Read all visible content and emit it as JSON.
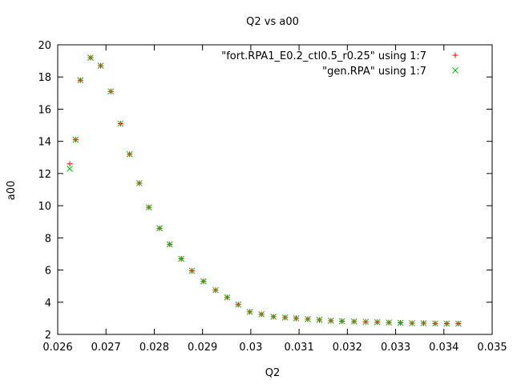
{
  "chart_data": {
    "type": "scatter",
    "title": "Q2 vs a00",
    "xlabel": "Q2",
    "ylabel": "a00",
    "xlim": [
      0.026,
      0.035
    ],
    "ylim": [
      2,
      20
    ],
    "xticks": [
      0.026,
      0.027,
      0.028,
      0.029,
      0.03,
      0.031,
      0.032,
      0.033,
      0.034,
      0.035
    ],
    "xtick_labels": [
      "0.026",
      "0.027",
      "0.028",
      "0.029",
      "0.03",
      "0.031",
      "0.032",
      "0.033",
      "0.034",
      "0.035"
    ],
    "yticks": [
      2,
      4,
      6,
      8,
      10,
      12,
      14,
      16,
      18,
      20
    ],
    "ytick_labels": [
      "2",
      "4",
      "6",
      "8",
      "10",
      "12",
      "14",
      "16",
      "18",
      "20"
    ],
    "grid": false,
    "legend_position": "top-right",
    "series": [
      {
        "name": "\"fort.RPA1_E0.2_ctl0.5_r0.25\" using 1:7",
        "marker": "plus",
        "color": "#ff0000",
        "x": [
          0.02625,
          0.02637,
          0.02647,
          0.02668,
          0.02689,
          0.0271,
          0.0273,
          0.02749,
          0.02769,
          0.02789,
          0.02811,
          0.02832,
          0.02856,
          0.02878,
          0.02902,
          0.02927,
          0.02951,
          0.02974,
          0.02998,
          0.03022,
          0.03047,
          0.03071,
          0.03094,
          0.03118,
          0.03142,
          0.03166,
          0.03189,
          0.03214,
          0.03238,
          0.03262,
          0.03286,
          0.0331,
          0.03334,
          0.03358,
          0.03382,
          0.03406,
          0.0343
        ],
        "y": [
          12.6,
          14.1,
          17.8,
          19.2,
          18.7,
          17.1,
          15.1,
          13.2,
          11.4,
          9.9,
          8.6,
          7.6,
          6.7,
          5.95,
          5.3,
          4.75,
          4.3,
          3.85,
          3.4,
          3.25,
          3.1,
          3.05,
          3.0,
          2.95,
          2.9,
          2.85,
          2.82,
          2.8,
          2.78,
          2.76,
          2.74,
          2.72,
          2.7,
          2.7,
          2.68,
          2.67,
          2.67
        ]
      },
      {
        "name": "\"gen.RPA\" using 1:7",
        "marker": "cross",
        "color": "#00c000",
        "x": [
          0.02625,
          0.02637,
          0.02647,
          0.02668,
          0.02689,
          0.0271,
          0.0273,
          0.02749,
          0.02769,
          0.02789,
          0.02811,
          0.02832,
          0.02856,
          0.02878,
          0.02902,
          0.02927,
          0.02951,
          0.02974,
          0.02998,
          0.03022,
          0.03047,
          0.03071,
          0.03094,
          0.03118,
          0.03142,
          0.03166,
          0.03189,
          0.03214,
          0.03238,
          0.03262,
          0.03286,
          0.0331,
          0.03334,
          0.03358,
          0.03382,
          0.03406,
          0.0343
        ],
        "y": [
          12.3,
          14.1,
          17.8,
          19.2,
          18.7,
          17.1,
          15.1,
          13.2,
          11.4,
          9.9,
          8.6,
          7.6,
          6.7,
          5.95,
          5.3,
          4.75,
          4.3,
          3.85,
          3.4,
          3.25,
          3.1,
          3.05,
          3.0,
          2.95,
          2.9,
          2.85,
          2.82,
          2.8,
          2.78,
          2.76,
          2.74,
          2.72,
          2.7,
          2.7,
          2.68,
          2.67,
          2.67
        ]
      }
    ]
  }
}
